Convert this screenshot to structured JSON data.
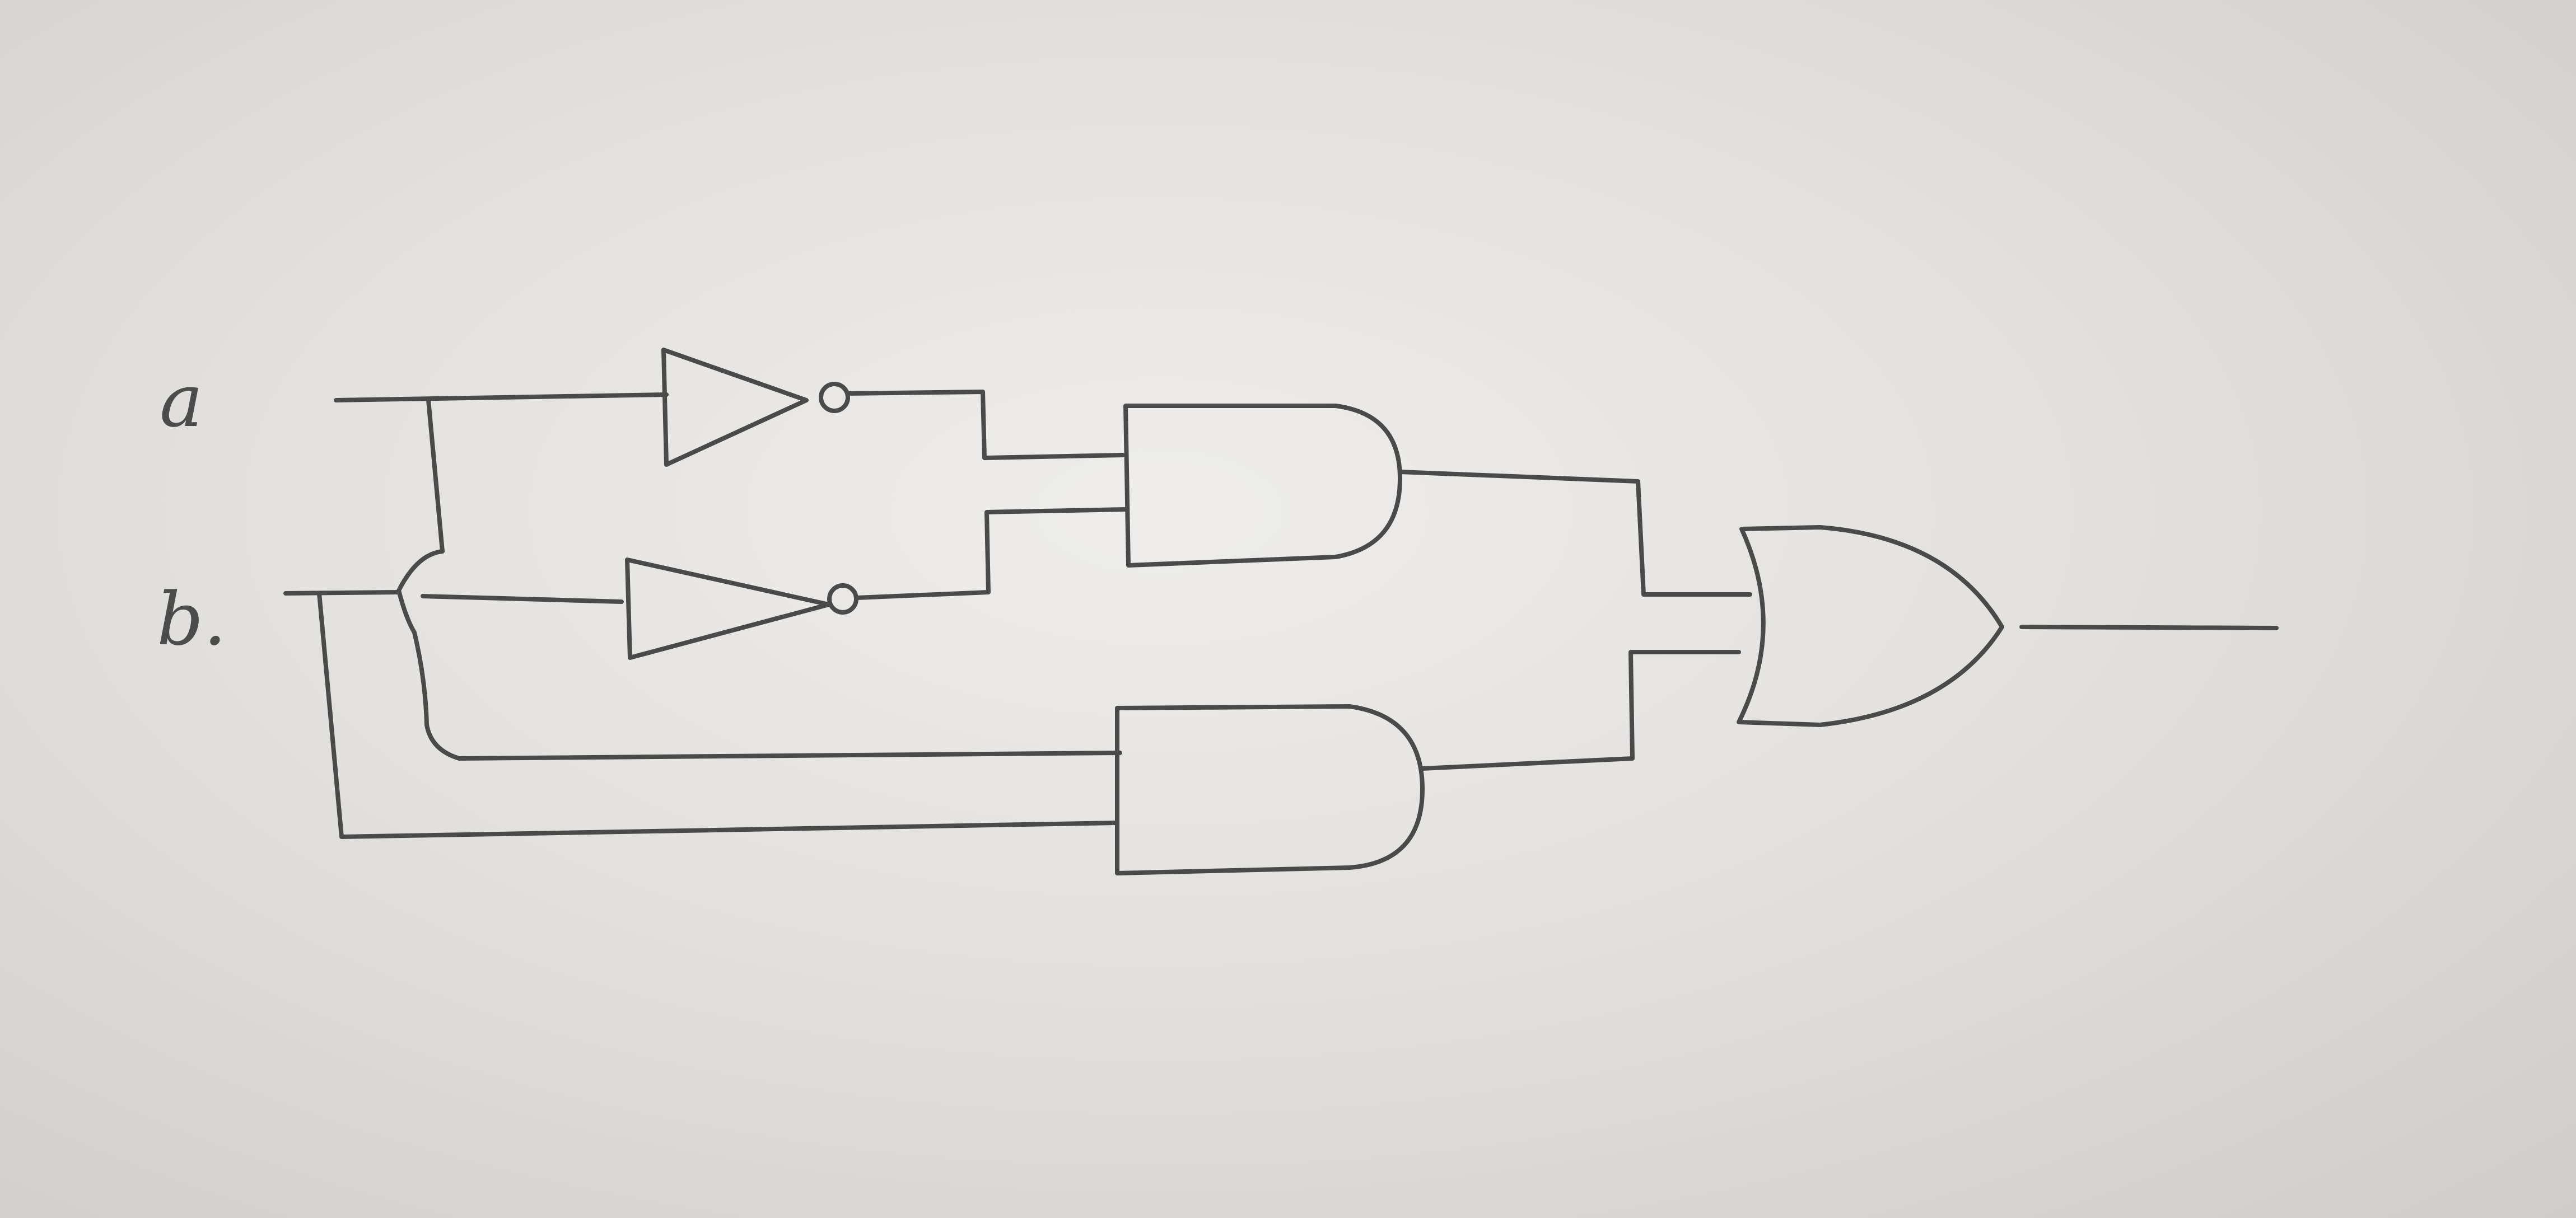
{
  "inputs": {
    "a_label": "a",
    "b_label": "b."
  }
}
